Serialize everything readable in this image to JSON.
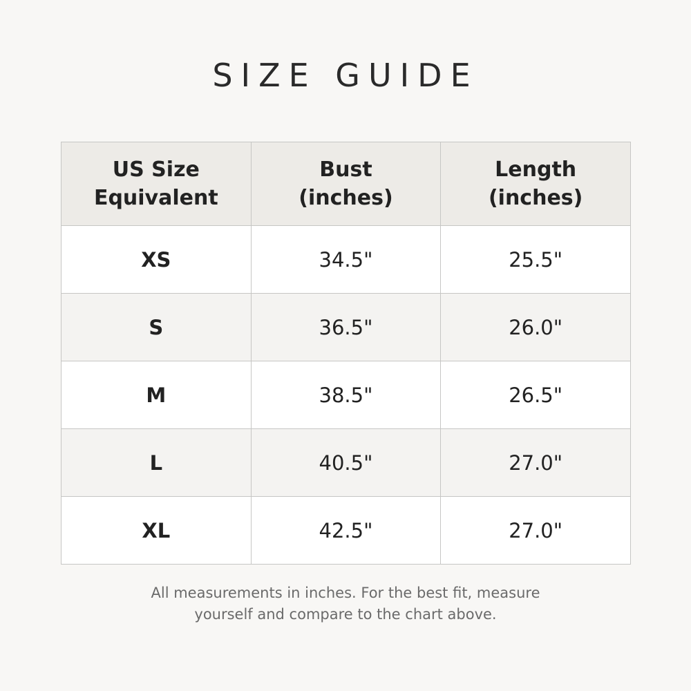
{
  "title": "SIZE GUIDE",
  "columns": [
    {
      "line1": "US Size",
      "line2": "Equivalent"
    },
    {
      "line1": "Bust",
      "line2": "(inches)"
    },
    {
      "line1": "Length",
      "line2": "(inches)"
    }
  ],
  "rows": [
    {
      "size": "XS",
      "bust": "34.5\"",
      "length": "25.5\""
    },
    {
      "size": "S",
      "bust": "36.5\"",
      "length": "26.0\""
    },
    {
      "size": "M",
      "bust": "38.5\"",
      "length": "26.5\""
    },
    {
      "size": "L",
      "bust": "40.5\"",
      "length": "27.0\""
    },
    {
      "size": "XL",
      "bust": "42.5\"",
      "length": "27.0\""
    }
  ],
  "note": {
    "line1": "All measurements in inches. For the best fit, measure",
    "line2": "yourself and compare to the chart above."
  },
  "colors": {
    "background": "#f8f7f5",
    "header": "#edebe7",
    "alt_row": "#f4f3f1",
    "border": "#c6c6c4"
  }
}
